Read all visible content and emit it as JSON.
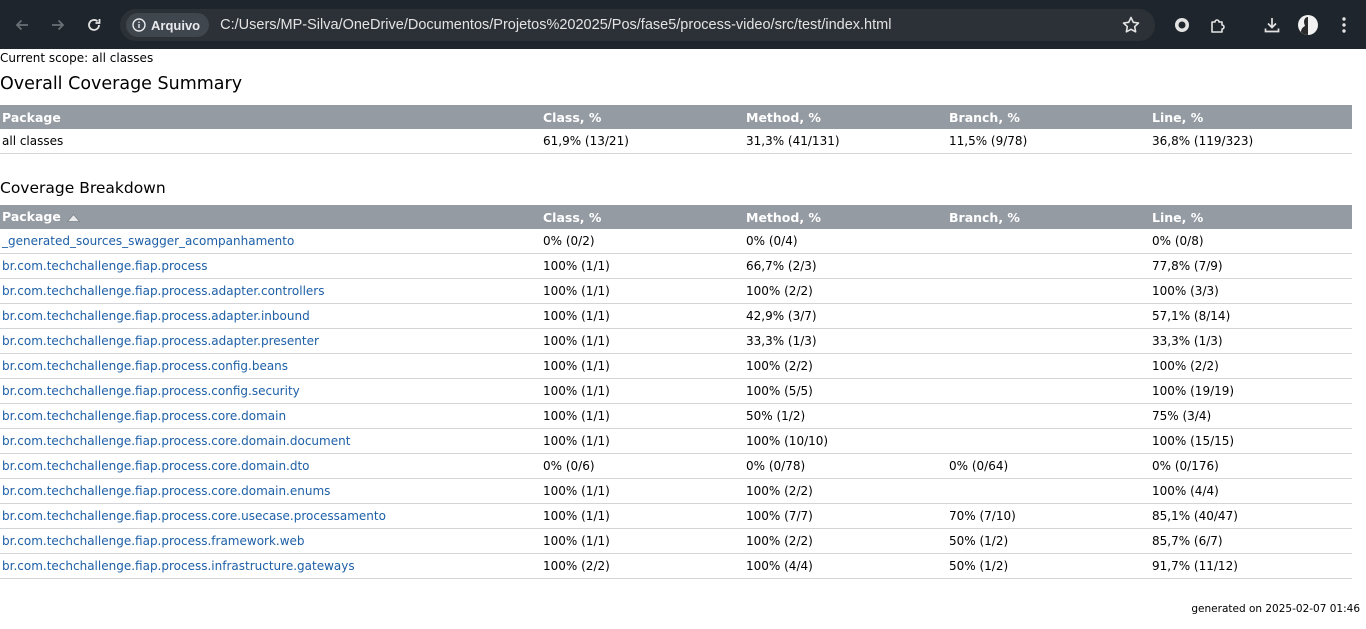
{
  "browser": {
    "security_label": "Arquivo",
    "url": "C:/Users/MP-Silva/OneDrive/Documentos/Projetos%202025/Pos/fase5/process-video/src/test/index.html"
  },
  "report": {
    "scope": "Current scope: all classes",
    "summary_title": "Overall Coverage Summary",
    "breakdown_title": "Coverage Breakdown",
    "headers": {
      "package": "Package",
      "class": "Class, %",
      "method": "Method, %",
      "branch": "Branch, %",
      "line": "Line, %"
    },
    "summary": {
      "package": "all classes",
      "class": "61,9% (13/21)",
      "method": "31,3% (41/131)",
      "branch": "11,5% (9/78)",
      "line": "36,8% (119/323)"
    },
    "rows": [
      {
        "package": "_generated_sources_swagger_acompanhamento",
        "class": "0% (0/2)",
        "method": "0% (0/4)",
        "branch": "",
        "line": "0% (0/8)"
      },
      {
        "package": "br.com.techchallenge.fiap.process",
        "class": "100% (1/1)",
        "method": "66,7% (2/3)",
        "branch": "",
        "line": "77,8% (7/9)"
      },
      {
        "package": "br.com.techchallenge.fiap.process.adapter.controllers",
        "class": "100% (1/1)",
        "method": "100% (2/2)",
        "branch": "",
        "line": "100% (3/3)"
      },
      {
        "package": "br.com.techchallenge.fiap.process.adapter.inbound",
        "class": "100% (1/1)",
        "method": "42,9% (3/7)",
        "branch": "",
        "line": "57,1% (8/14)"
      },
      {
        "package": "br.com.techchallenge.fiap.process.adapter.presenter",
        "class": "100% (1/1)",
        "method": "33,3% (1/3)",
        "branch": "",
        "line": "33,3% (1/3)"
      },
      {
        "package": "br.com.techchallenge.fiap.process.config.beans",
        "class": "100% (1/1)",
        "method": "100% (2/2)",
        "branch": "",
        "line": "100% (2/2)"
      },
      {
        "package": "br.com.techchallenge.fiap.process.config.security",
        "class": "100% (1/1)",
        "method": "100% (5/5)",
        "branch": "",
        "line": "100% (19/19)"
      },
      {
        "package": "br.com.techchallenge.fiap.process.core.domain",
        "class": "100% (1/1)",
        "method": "50% (1/2)",
        "branch": "",
        "line": "75% (3/4)"
      },
      {
        "package": "br.com.techchallenge.fiap.process.core.domain.document",
        "class": "100% (1/1)",
        "method": "100% (10/10)",
        "branch": "",
        "line": "100% (15/15)"
      },
      {
        "package": "br.com.techchallenge.fiap.process.core.domain.dto",
        "class": "0% (0/6)",
        "method": "0% (0/78)",
        "branch": "0% (0/64)",
        "line": "0% (0/176)"
      },
      {
        "package": "br.com.techchallenge.fiap.process.core.domain.enums",
        "class": "100% (1/1)",
        "method": "100% (2/2)",
        "branch": "",
        "line": "100% (4/4)"
      },
      {
        "package": "br.com.techchallenge.fiap.process.core.usecase.processamento",
        "class": "100% (1/1)",
        "method": "100% (7/7)",
        "branch": "70% (7/10)",
        "line": "85,1% (40/47)"
      },
      {
        "package": "br.com.techchallenge.fiap.process.framework.web",
        "class": "100% (1/1)",
        "method": "100% (2/2)",
        "branch": "50% (1/2)",
        "line": "85,7% (6/7)"
      },
      {
        "package": "br.com.techchallenge.fiap.process.infrastructure.gateways",
        "class": "100% (2/2)",
        "method": "100% (4/4)",
        "branch": "50% (1/2)",
        "line": "91,7% (11/12)"
      }
    ],
    "footer": "generated on 2025-02-07 01:46"
  }
}
